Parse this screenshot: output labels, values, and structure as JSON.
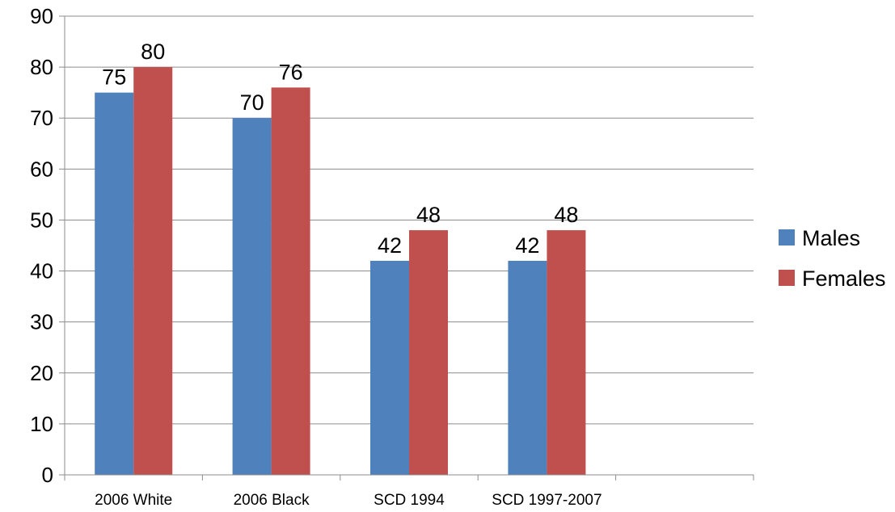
{
  "chart_data": {
    "type": "bar",
    "categories": [
      "2006 White",
      "2006 Black",
      "SCD 1994",
      "SCD 1997-2007"
    ],
    "series": [
      {
        "name": "Males",
        "values": [
          75,
          70,
          42,
          42
        ],
        "color": "#4F81BD"
      },
      {
        "name": "Females",
        "values": [
          80,
          76,
          48,
          48
        ],
        "color": "#C0504D"
      }
    ],
    "title": "",
    "xlabel": "",
    "ylabel": "",
    "ylim": [
      0,
      90
    ],
    "yticks": [
      0,
      10,
      20,
      30,
      40,
      50,
      60,
      70,
      80,
      90
    ],
    "grid": true,
    "legend_position": "right",
    "empty_trailing_slots": 1
  }
}
